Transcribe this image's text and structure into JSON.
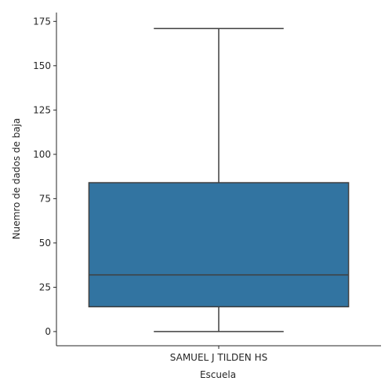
{
  "chart_data": {
    "type": "box",
    "categories": [
      "SAMUEL J TILDEN HS"
    ],
    "boxes": [
      {
        "category": "SAMUEL J TILDEN HS",
        "whisker_low": 0,
        "q1": 14,
        "median": 32,
        "q3": 84,
        "whisker_high": 171
      }
    ],
    "xlabel": "Escuela",
    "ylabel": "Nuemro de dados de baja",
    "ylim": [
      -8,
      180
    ],
    "yticks": [
      0,
      25,
      50,
      75,
      100,
      125,
      150,
      175
    ],
    "grid": false,
    "box_color": "#3274a1",
    "line_color": "#3f3f3f"
  }
}
